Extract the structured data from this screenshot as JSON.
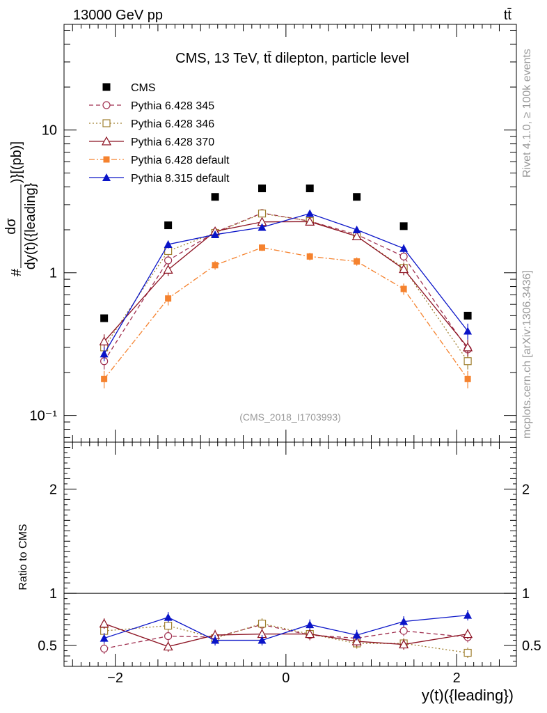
{
  "header": {
    "energy_label": "13000 GeV pp",
    "process_label": "tt̄"
  },
  "side_labels": {
    "rivet": "Rivet 4.1.0, ≥ 100k events",
    "mcplots": "mcplots.cern.ch [arXiv:1306.3436]"
  },
  "chart_data": {
    "type": "line",
    "title": "CMS, 13 TeV, tt̄ dilepton, particle level",
    "analysis_tag": "(CMS_2018_I1703993)",
    "ylabel": "#dσ/dy(t)({leading})}[(pb)]",
    "ylabel_parts": {
      "numerator": "dσ",
      "denominator": "dy(t)({leading}",
      "hash": "#",
      "suffix": ")}[(pb)]"
    },
    "xlabel": "y(t)({leading})",
    "ratio_ylabel": "Ratio to CMS",
    "yscale": "log",
    "xlim": [
      -2.6,
      2.7
    ],
    "ylim": [
      0.065,
      55
    ],
    "ratio_ylim": [
      0.3,
      2.45
    ],
    "x_ticks": [
      -2,
      0,
      2
    ],
    "x_tick_labels": [
      "−2",
      "0",
      "2"
    ],
    "y_ticks": [
      0.1,
      1,
      10
    ],
    "y_tick_labels": [
      "10⁻¹",
      "1",
      "10"
    ],
    "ratio_ticks": [
      0.5,
      1,
      2
    ],
    "ratio_tick_labels": [
      "0.5",
      "1",
      "2"
    ],
    "x": [
      -2.13,
      -1.38,
      -0.83,
      -0.28,
      0.28,
      0.83,
      1.38,
      2.13
    ],
    "reference": {
      "name": "CMS",
      "values": [
        0.48,
        2.15,
        3.4,
        3.9,
        3.9,
        3.4,
        2.12,
        0.5
      ]
    },
    "series": [
      {
        "name": "Pythia 6.428 345",
        "color": "#a03050",
        "dash": "6,4",
        "marker": "circle-open",
        "values": [
          0.24,
          1.22,
          1.92,
          2.62,
          2.3,
          1.85,
          1.3,
          0.29
        ],
        "errors": [
          0.03,
          0.1,
          0.1,
          0.1,
          0.1,
          0.1,
          0.1,
          0.04
        ],
        "ratio": [
          0.47,
          0.59,
          0.58,
          0.7,
          0.6,
          0.57,
          0.64,
          0.58
        ]
      },
      {
        "name": "Pythia 6.428 346",
        "color": "#a08030",
        "dash": "2,3",
        "marker": "square-open",
        "values": [
          0.3,
          1.42,
          1.9,
          2.6,
          2.3,
          1.8,
          1.08,
          0.24
        ],
        "errors": [
          0.03,
          0.1,
          0.1,
          0.1,
          0.1,
          0.1,
          0.1,
          0.03
        ],
        "ratio": [
          0.64,
          0.69,
          0.57,
          0.71,
          0.61,
          0.52,
          0.52,
          0.43
        ]
      },
      {
        "name": "Pythia 6.428 370",
        "color": "#8b1020",
        "dash": "",
        "marker": "triangle-open",
        "values": [
          0.33,
          1.05,
          1.95,
          2.27,
          2.28,
          1.8,
          1.06,
          0.3
        ],
        "errors": [
          0.04,
          0.1,
          0.1,
          0.1,
          0.1,
          0.1,
          0.1,
          0.04
        ],
        "ratio": [
          0.71,
          0.49,
          0.6,
          0.61,
          0.61,
          0.54,
          0.51,
          0.61
        ]
      },
      {
        "name": "Pythia 6.428 default",
        "color": "#f5822e",
        "dash": "8,3,2,3",
        "marker": "square-filled",
        "values": [
          0.18,
          0.66,
          1.13,
          1.5,
          1.3,
          1.2,
          0.77,
          0.18
        ],
        "errors": [
          0.025,
          0.07,
          0.08,
          0.08,
          0.08,
          0.08,
          0.07,
          0.025
        ],
        "ratio": []
      },
      {
        "name": "Pythia 8.315 default",
        "color": "#0a14c8",
        "dash": "",
        "marker": "triangle-filled",
        "values": [
          0.27,
          1.58,
          1.85,
          2.08,
          2.6,
          2.0,
          1.48,
          0.39
        ],
        "errors": [
          0.03,
          0.1,
          0.1,
          0.1,
          0.1,
          0.1,
          0.1,
          0.05
        ],
        "ratio": [
          0.57,
          0.77,
          0.55,
          0.55,
          0.7,
          0.6,
          0.73,
          0.79
        ]
      }
    ]
  }
}
